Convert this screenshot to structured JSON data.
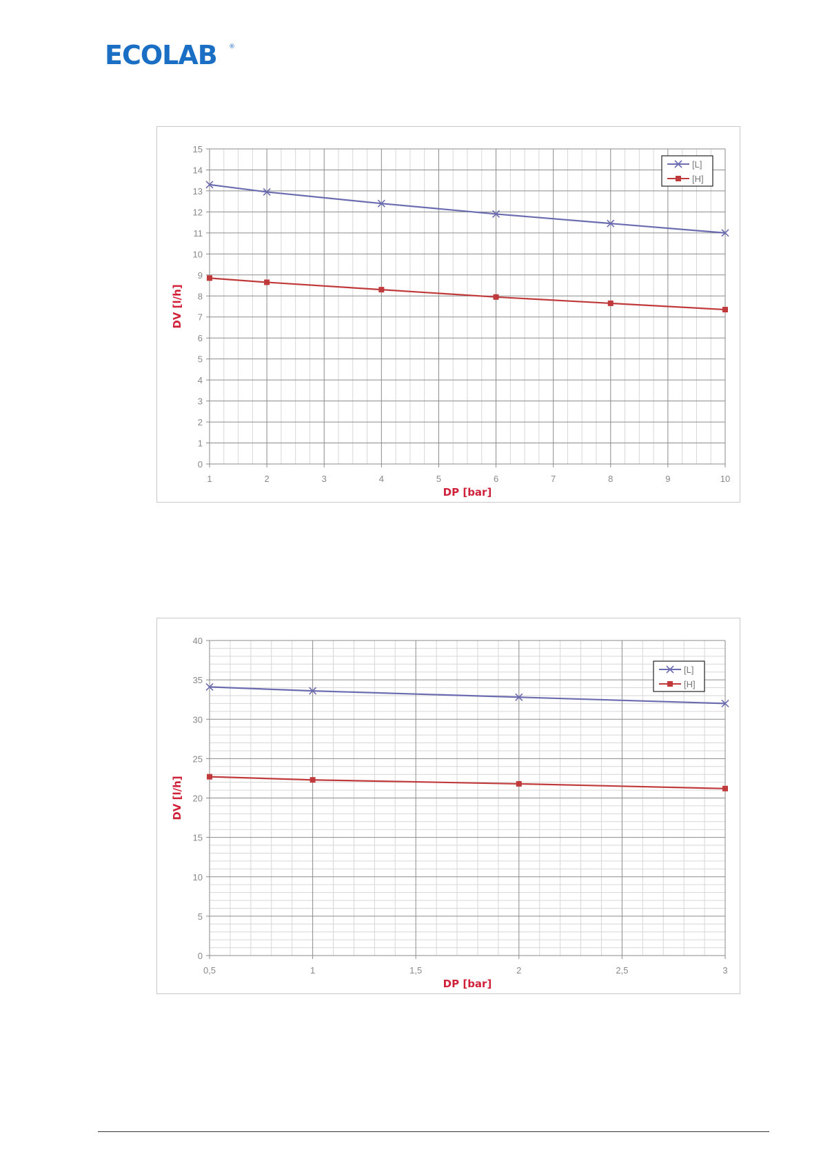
{
  "brand": {
    "logo_text": "ECOLAB",
    "registered_mark": "®",
    "color": "#1a6fc4"
  },
  "charts_style": {
    "series_colors": {
      "L": "#6b6bb0",
      "H": "#c0393b"
    },
    "axis_title_color": "#d0213a"
  },
  "chart_data": [
    {
      "type": "line",
      "xlabel": "DP [bar]",
      "ylabel": "DV [l/h]",
      "xlim": [
        1,
        10
      ],
      "ylim": [
        0,
        15
      ],
      "x_ticks": [
        "1",
        "2",
        "3",
        "4",
        "5",
        "6",
        "7",
        "8",
        "9",
        "10"
      ],
      "y_ticks": [
        "0",
        "1",
        "2",
        "3",
        "4",
        "5",
        "6",
        "7",
        "8",
        "9",
        "10",
        "11",
        "12",
        "13",
        "14",
        "15"
      ],
      "grid": true,
      "legend": "top-right",
      "series": [
        {
          "name": "[L]",
          "marker": "x",
          "x": [
            1,
            2,
            4,
            6,
            8,
            10
          ],
          "y": [
            13.3,
            12.95,
            12.4,
            11.9,
            11.45,
            11.0
          ]
        },
        {
          "name": "[H]",
          "marker": "square",
          "x": [
            1,
            2,
            4,
            6,
            8,
            10
          ],
          "y": [
            8.85,
            8.65,
            8.3,
            7.95,
            7.65,
            7.35
          ]
        }
      ]
    },
    {
      "type": "line",
      "xlabel": "DP [bar]",
      "ylabel": "DV [l/h]",
      "xlim": [
        0.5,
        3
      ],
      "ylim": [
        0,
        40
      ],
      "x_ticks": [
        "0,5",
        "1",
        "1,5",
        "2",
        "2,5",
        "3"
      ],
      "y_ticks": [
        "0",
        "5",
        "10",
        "15",
        "20",
        "25",
        "30",
        "35",
        "40"
      ],
      "grid": true,
      "legend": "top-right",
      "series": [
        {
          "name": "[L]",
          "marker": "x",
          "x": [
            0.5,
            1,
            2,
            3
          ],
          "y": [
            34.1,
            33.6,
            32.8,
            32.0
          ]
        },
        {
          "name": "[H]",
          "marker": "square",
          "x": [
            0.5,
            1,
            2,
            3
          ],
          "y": [
            22.7,
            22.3,
            21.8,
            21.2
          ]
        }
      ]
    }
  ]
}
